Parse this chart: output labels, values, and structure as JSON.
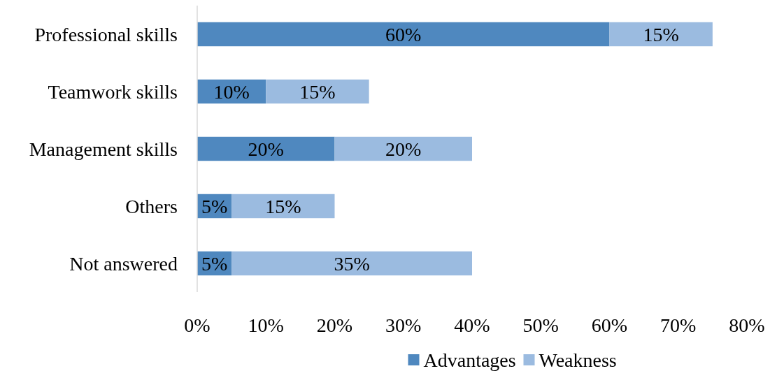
{
  "chart_data": {
    "type": "bar",
    "orientation": "horizontal",
    "stacked": true,
    "categories": [
      "Professional skills",
      "Teamwork skills",
      "Management skills",
      "Others",
      "Not answered"
    ],
    "series": [
      {
        "name": "Advantages",
        "color": "#4f88bf",
        "values": [
          60,
          10,
          20,
          5,
          5
        ],
        "value_labels": [
          "60%",
          "10%",
          "20%",
          "5%",
          "5%"
        ]
      },
      {
        "name": "Weakness",
        "color": "#9bbbe0",
        "values": [
          15,
          15,
          20,
          15,
          35
        ],
        "value_labels": [
          "15%",
          "15%",
          "20%",
          "15%",
          "35%"
        ]
      }
    ],
    "xlim": [
      0,
      80
    ],
    "xticks": [
      {
        "value": 0,
        "label": "0%"
      },
      {
        "value": 10,
        "label": "10%"
      },
      {
        "value": 20,
        "label": "20%"
      },
      {
        "value": 30,
        "label": "30%"
      },
      {
        "value": 40,
        "label": "40%"
      },
      {
        "value": 50,
        "label": "50%"
      },
      {
        "value": 60,
        "label": "60%"
      },
      {
        "value": 70,
        "label": "70%"
      },
      {
        "value": 80,
        "label": "80%"
      }
    ],
    "grid": false,
    "legend": "bottom"
  }
}
